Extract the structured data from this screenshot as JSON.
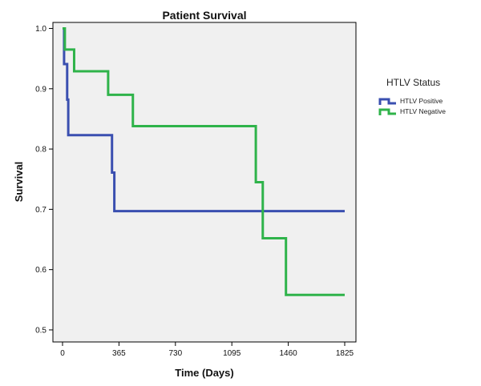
{
  "chart_data": {
    "type": "line",
    "subtype": "kaplan-meier step",
    "title": "Patient Survival",
    "xlabel": "Time (Days)",
    "ylabel": "Survival",
    "xlim": [
      0,
      1825
    ],
    "ylim": [
      0.48,
      1.01
    ],
    "xticks": [
      0,
      365,
      730,
      1095,
      1460,
      1825
    ],
    "yticks": [
      1.0,
      0.9,
      0.8,
      0.7,
      0.6,
      0.5
    ],
    "ytick_labels": [
      "1.0",
      "0.9",
      "0.8",
      "0.7",
      "0.6",
      "0.5"
    ],
    "grid": false,
    "legend_position": "right",
    "legend_title": "HTLV Status",
    "series": [
      {
        "name": "HTLV Positive",
        "color": "#3a4fb0",
        "x": [
          0,
          10,
          30,
          37,
          320,
          335,
          1825
        ],
        "y": [
          1.0,
          0.941,
          0.882,
          0.823,
          0.761,
          0.697,
          0.697
        ]
      },
      {
        "name": "HTLV Negative",
        "color": "#2fb34a",
        "x": [
          0,
          15,
          75,
          295,
          455,
          1250,
          1295,
          1445,
          1825
        ],
        "y": [
          1.0,
          0.965,
          0.929,
          0.89,
          0.838,
          0.745,
          0.652,
          0.558,
          0.558
        ]
      }
    ]
  }
}
